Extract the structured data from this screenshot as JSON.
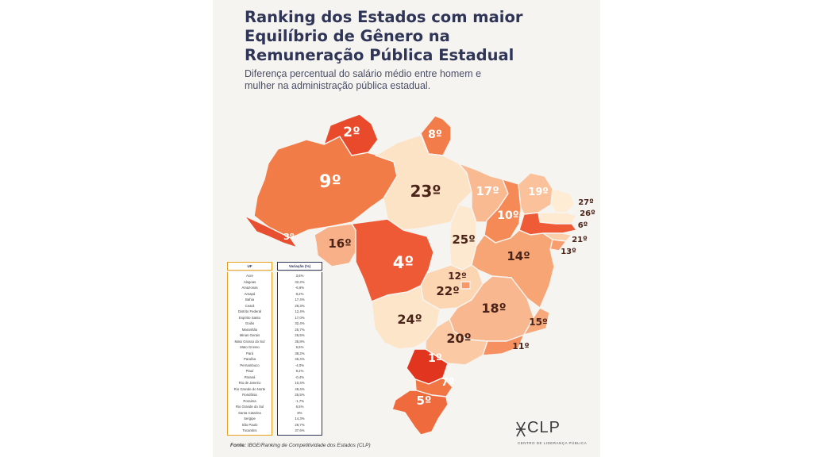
{
  "title_lines": [
    "Ranking dos Estados com maior",
    "Equilíbrio de Gênero na",
    "Remuneração Pública Estadual"
  ],
  "subtitle_lines": [
    "Diferença percentual do salário médio entre homem e",
    "mulher na administração pública estadual."
  ],
  "map": {
    "states": [
      {
        "id": "AM",
        "rank": "9º",
        "color": "#f27c47"
      },
      {
        "id": "RR",
        "rank": "2º",
        "color": "#e94a2c"
      },
      {
        "id": "AP",
        "rank": "8º",
        "color": "#f37d4a"
      },
      {
        "id": "PA",
        "rank": "23º",
        "color": "#fde3c6"
      },
      {
        "id": "AC",
        "rank": "3º",
        "color": "#e84f30"
      },
      {
        "id": "RO",
        "rank": "16º",
        "color": "#f8b088"
      },
      {
        "id": "MT",
        "rank": "4º",
        "color": "#ee5a36"
      },
      {
        "id": "TO",
        "rank": "25º",
        "color": "#fde9cf"
      },
      {
        "id": "MA",
        "rank": "17º",
        "color": "#f9b991"
      },
      {
        "id": "PI",
        "rank": "10º",
        "color": "#f58a56"
      },
      {
        "id": "CE",
        "rank": "19º",
        "color": "#fac19b"
      },
      {
        "id": "RN",
        "rank": "27º",
        "color": "#feecd4"
      },
      {
        "id": "PB",
        "rank": "26º",
        "color": "#feead1"
      },
      {
        "id": "PE",
        "rank": "6º",
        "color": "#ee5b36"
      },
      {
        "id": "AL",
        "rank": "21º",
        "color": "#fbcfaa"
      },
      {
        "id": "SE",
        "rank": "13º",
        "color": "#f79d6e"
      },
      {
        "id": "BA",
        "rank": "14º",
        "color": "#f8a576"
      },
      {
        "id": "GO",
        "rank": "22º",
        "color": "#fcd6b2"
      },
      {
        "id": "DF",
        "rank": "12º",
        "color": "#f79a6b"
      },
      {
        "id": "MS",
        "rank": "24º",
        "color": "#fde5ca"
      },
      {
        "id": "MG",
        "rank": "18º",
        "color": "#f9b78f"
      },
      {
        "id": "ES",
        "rank": "15º",
        "color": "#f8a97c"
      },
      {
        "id": "SP",
        "rank": "20º",
        "color": "#fbc9a3"
      },
      {
        "id": "RJ",
        "rank": "11º",
        "color": "#f69060"
      },
      {
        "id": "PR",
        "rank": "1º",
        "color": "#e2351f"
      },
      {
        "id": "SC",
        "rank": "7º",
        "color": "#f27643"
      },
      {
        "id": "RS",
        "rank": "5º",
        "color": "#ef6b3d"
      }
    ]
  },
  "table": {
    "header_uf": "UF",
    "header_var": "Variação (%)",
    "rows": [
      {
        "uf": "Acre",
        "var": "3,6%"
      },
      {
        "uf": "Alagoas",
        "var": "32,2%"
      },
      {
        "uf": "Amazonas",
        "var": "-6,6%"
      },
      {
        "uf": "Amapá",
        "var": "8,2%"
      },
      {
        "uf": "Bahia",
        "var": "17,4%"
      },
      {
        "uf": "Ceará",
        "var": "28,3%"
      },
      {
        "uf": "Distrito Federal",
        "var": "12,4%"
      },
      {
        "uf": "Espírito Santo",
        "var": "17,0%"
      },
      {
        "uf": "Goiás",
        "var": "32,4%"
      },
      {
        "uf": "Maranhão",
        "var": "25,7%"
      },
      {
        "uf": "Minas Gerais",
        "var": "26,5%"
      },
      {
        "uf": "Mato Grosso do Sul",
        "var": "35,8%"
      },
      {
        "uf": "Mato Grosso",
        "var": "5,5%"
      },
      {
        "uf": "Pará",
        "var": "38,2%"
      },
      {
        "uf": "Paraíba",
        "var": "45,4%"
      },
      {
        "uf": "Pernambuco",
        "var": "-4,0%"
      },
      {
        "uf": "Piauí",
        "var": "9,2%"
      },
      {
        "uf": "Paraná",
        "var": "-0,4%"
      },
      {
        "uf": "Rio de Janeiro",
        "var": "10,4%"
      },
      {
        "uf": "Rio Grande do Norte",
        "var": "49,4%"
      },
      {
        "uf": "Rondônia",
        "var": "25,5%"
      },
      {
        "uf": "Roraima",
        "var": "-1,7%"
      },
      {
        "uf": "Rio Grande do Sul",
        "var": "6,5%"
      },
      {
        "uf": "Santa Catarina",
        "var": "8%"
      },
      {
        "uf": "Sergipe",
        "var": "14,3%"
      },
      {
        "uf": "São Paulo",
        "var": "28,7%"
      },
      {
        "uf": "Tocantins",
        "var": "37,6%"
      }
    ]
  },
  "source": {
    "label": "Fonte:",
    "text": "IBGE/Ranking de Competitividade dos Estados (CLP)"
  },
  "logo": {
    "text": "CLP",
    "subtitle": "CENTRO DE LIDERANÇA PÚBLICA"
  }
}
